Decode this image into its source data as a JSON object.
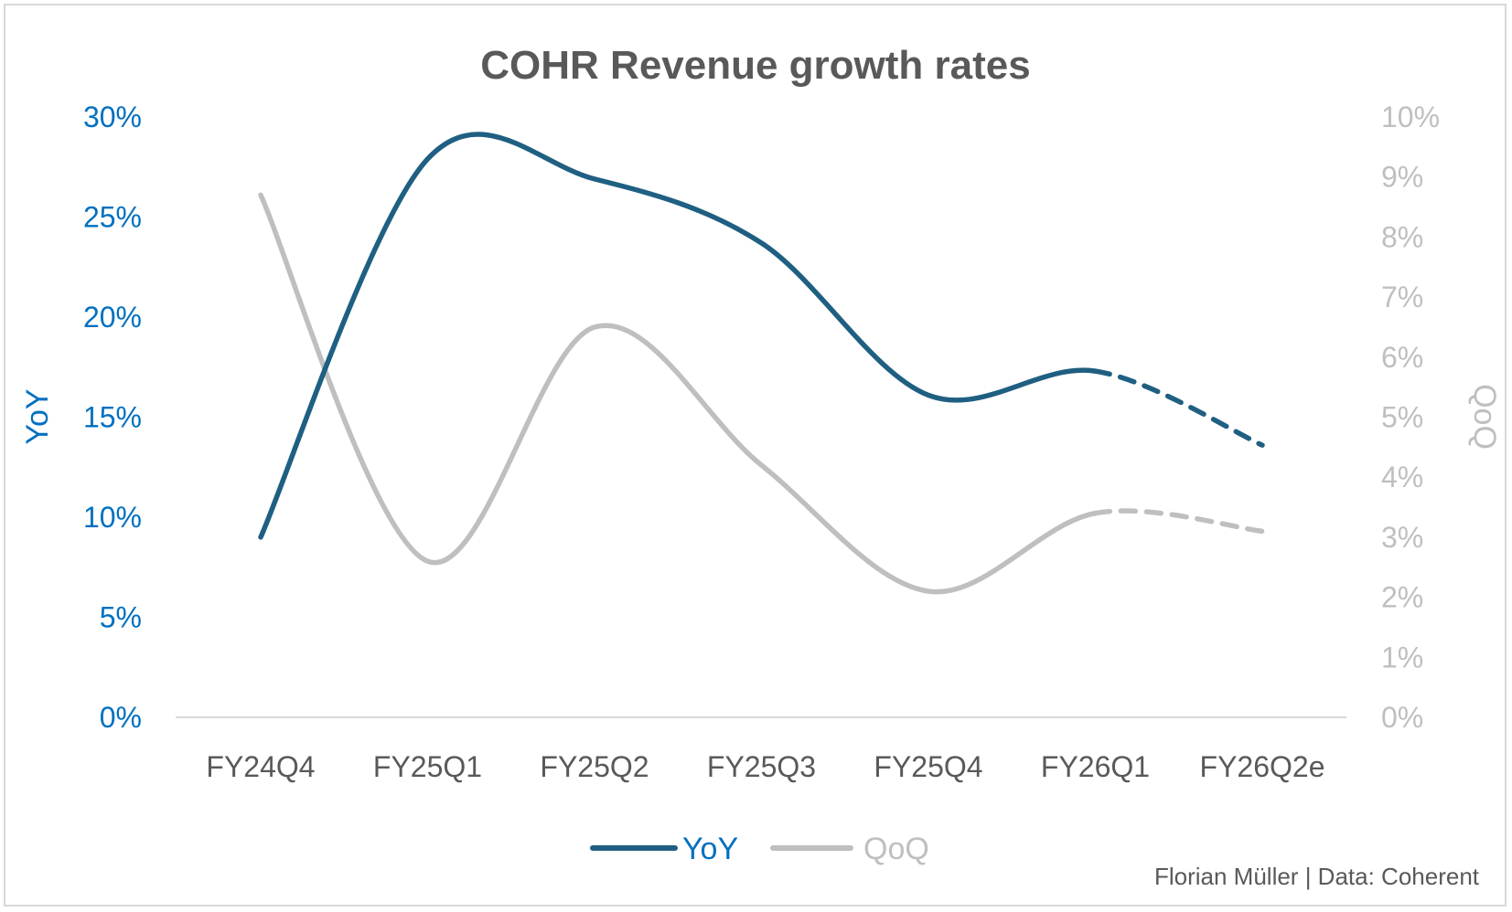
{
  "chart_data": {
    "type": "line",
    "title": "COHR Revenue growth rates",
    "categories": [
      "FY24Q4",
      "FY25Q1",
      "FY25Q2",
      "FY25Q3",
      "FY25Q4",
      "FY26Q1",
      "FY26Q2e"
    ],
    "y_left": {
      "label": "YoY",
      "range": [
        0,
        0.3
      ],
      "ticks": [
        0,
        0.05,
        0.1,
        0.15,
        0.2,
        0.25,
        0.3
      ],
      "tick_labels": [
        "0%",
        "5%",
        "10%",
        "15%",
        "20%",
        "25%",
        "30%"
      ],
      "color": "#0070c0"
    },
    "y_right": {
      "label": "QoQ",
      "range": [
        0,
        0.1
      ],
      "ticks": [
        0,
        0.01,
        0.02,
        0.03,
        0.04,
        0.05,
        0.06,
        0.07,
        0.08,
        0.09,
        0.1
      ],
      "tick_labels": [
        "0%",
        "1%",
        "2%",
        "3%",
        "4%",
        "5%",
        "6%",
        "7%",
        "8%",
        "9%",
        "10%"
      ],
      "color": "#bfbfbf"
    },
    "series": [
      {
        "name": "YoY",
        "axis": "left",
        "color": "#1f5f82",
        "values": [
          0.09,
          0.279,
          0.269,
          0.237,
          0.161,
          0.173,
          0.136
        ],
        "estimate_from_index": 5
      },
      {
        "name": "QoQ",
        "axis": "right",
        "color": "#bfbfbf",
        "values": [
          0.087,
          0.026,
          0.065,
          0.042,
          0.021,
          0.034,
          0.031
        ],
        "estimate_from_index": 5
      }
    ],
    "legend": {
      "placement": "bottom",
      "items": [
        {
          "label": "YoY",
          "color": "#1f5f82",
          "text_color": "#0070c0"
        },
        {
          "label": "QoQ",
          "color": "#bfbfbf",
          "text_color": "#bfbfbf"
        }
      ]
    },
    "grid": false,
    "source": "Florian Müller | Data: Coherent"
  }
}
